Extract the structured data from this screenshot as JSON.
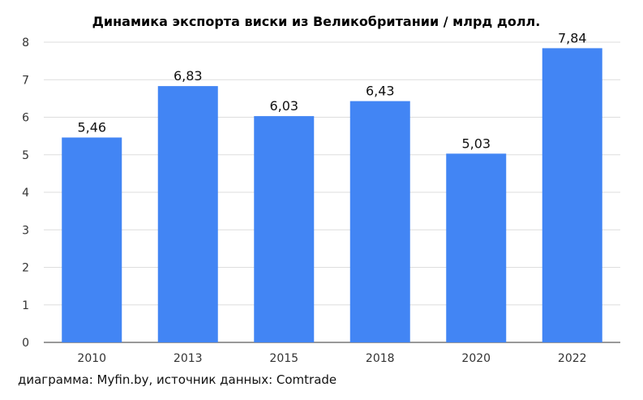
{
  "chart_data": {
    "type": "bar",
    "title": "Динамика экспорта виски из Великобритании / млрд долл.",
    "categories": [
      "2010",
      "2013",
      "2015",
      "2018",
      "2020",
      "2022"
    ],
    "values": [
      5.46,
      6.83,
      6.03,
      6.43,
      5.03,
      7.84
    ],
    "value_labels": [
      "5,46",
      "6,83",
      "6,03",
      "6,43",
      "5,03",
      "7,84"
    ],
    "yticks": [
      "0",
      "1",
      "2",
      "3",
      "4",
      "5",
      "6",
      "7",
      "8"
    ],
    "ylim": [
      0,
      8
    ],
    "grid": true,
    "legend": "none",
    "bar_color": "#4285F4",
    "xlabel": "",
    "ylabel": ""
  },
  "footer": "диаграмма: Myfin.by, источник данных: Comtrade"
}
